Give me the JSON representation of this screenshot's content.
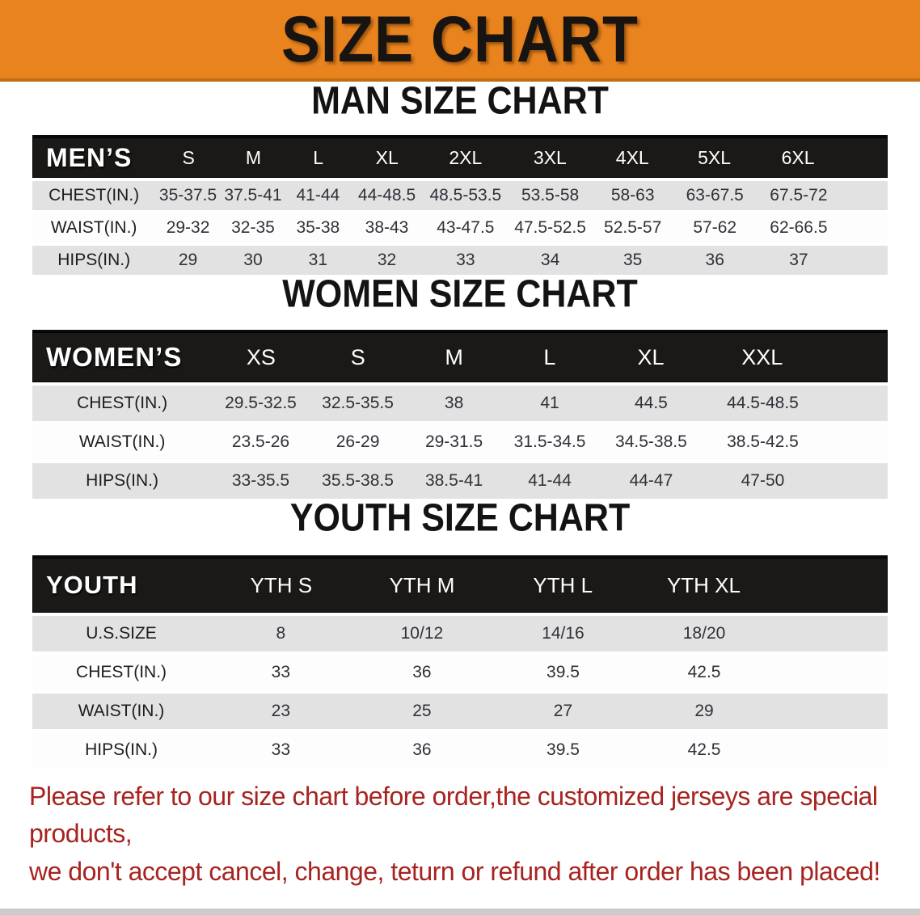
{
  "banner": {
    "title": "SIZE CHART",
    "background_color": "#e8831e"
  },
  "sections": [
    {
      "heading": "MAN SIZE CHART",
      "table": {
        "name": "MEN’S",
        "columns": [
          "S",
          "M",
          "L",
          "XL",
          "2XL",
          "3XL",
          "4XL",
          "5XL",
          "6XL"
        ],
        "rows": [
          {
            "label": "CHEST(IN.)",
            "values": [
              "35-37.5",
              "37.5-41",
              "41-44",
              "44-48.5",
              "48.5-53.5",
              "53.5-58",
              "58-63",
              "63-67.5",
              "67.5-72"
            ]
          },
          {
            "label": "WAIST(IN.)",
            "values": [
              "29-32",
              "32-35",
              "35-38",
              "38-43",
              "43-47.5",
              "47.5-52.5",
              "52.5-57",
              "57-62",
              "62-66.5"
            ]
          },
          {
            "label": "HIPS(IN.)",
            "values": [
              "29",
              "30",
              "31",
              "32",
              "33",
              "34",
              "35",
              "36",
              "37"
            ]
          }
        ]
      }
    },
    {
      "heading": "WOMEN SIZE CHART",
      "table": {
        "name": "WOMEN’S",
        "columns": [
          "XS",
          "S",
          "M",
          "L",
          "XL",
          "XXL"
        ],
        "rows": [
          {
            "label": "CHEST(IN.)",
            "values": [
              "29.5-32.5",
              "32.5-35.5",
              "38",
              "41",
              "44.5",
              "44.5-48.5"
            ]
          },
          {
            "label": "WAIST(IN.)",
            "values": [
              "23.5-26",
              "26-29",
              "29-31.5",
              "31.5-34.5",
              "34.5-38.5",
              "38.5-42.5"
            ]
          },
          {
            "label": "HIPS(IN.)",
            "values": [
              "33-35.5",
              "35.5-38.5",
              "38.5-41",
              "41-44",
              "44-47",
              "47-50"
            ]
          }
        ]
      }
    },
    {
      "heading": "YOUTH SIZE CHART",
      "table": {
        "name": "YOUTH",
        "columns": [
          "YTH S",
          "YTH M",
          "YTH L",
          "YTH XL"
        ],
        "rows": [
          {
            "label": "U.S.SIZE",
            "values": [
              "8",
              "10/12",
              "14/16",
              "18/20"
            ]
          },
          {
            "label": "CHEST(IN.)",
            "values": [
              "33",
              "36",
              "39.5",
              "42.5"
            ]
          },
          {
            "label": "WAIST(IN.)",
            "values": [
              "23",
              "25",
              "27",
              "29"
            ]
          },
          {
            "label": "HIPS(IN.)",
            "values": [
              "33",
              "36",
              "39.5",
              "42.5"
            ]
          }
        ]
      }
    }
  ],
  "disclaimer": {
    "line1": "Please refer to our size chart before order,the customized jerseys are special products,",
    "line2": "we don't accept cancel, change, teturn or refund after order has been placed!",
    "text_color": "#a8231f"
  },
  "colors": {
    "banner_orange": "#e8831e",
    "banner_border": "#c06e12",
    "table_header_black": "#1a1917",
    "row_gray": "#e2e2e2",
    "row_white": "#fdfdfd",
    "bottom_strip_gray": "#cbcbcb"
  }
}
